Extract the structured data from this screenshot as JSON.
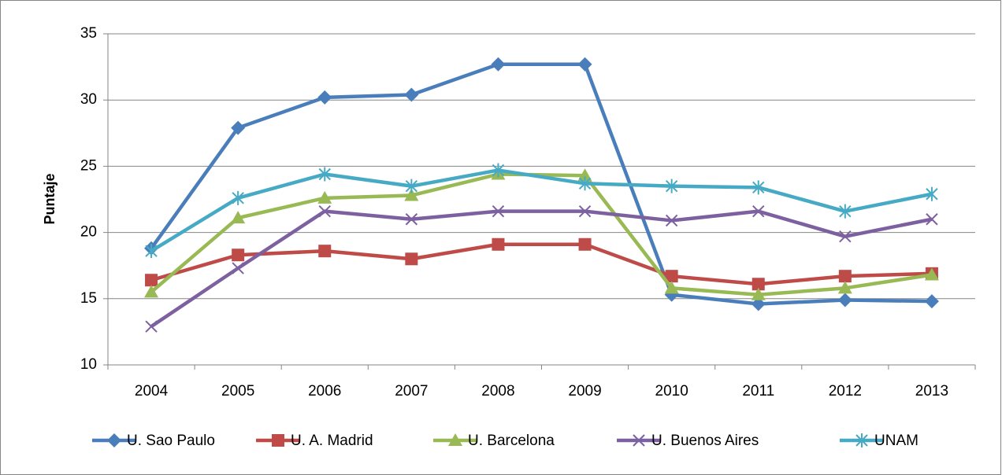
{
  "chart_data": {
    "type": "line",
    "y_label": "Puntaje",
    "categories": [
      "2004",
      "2005",
      "2006",
      "2007",
      "2008",
      "2009",
      "2010",
      "2011",
      "2012",
      "2013"
    ],
    "series": [
      {
        "name": "U. Sao Paulo",
        "color": "#4a7ebb",
        "marker": "diamond",
        "values": [
          18.8,
          27.9,
          30.2,
          30.4,
          32.7,
          32.7,
          15.3,
          14.6,
          14.9,
          14.8
        ]
      },
      {
        "name": "U. A. Madrid",
        "color": "#be4b48",
        "marker": "square",
        "values": [
          16.4,
          18.3,
          18.6,
          18.0,
          19.1,
          19.1,
          16.7,
          16.1,
          16.7,
          16.9
        ]
      },
      {
        "name": "U. Barcelona",
        "color": "#98b954",
        "marker": "triangle",
        "values": [
          15.5,
          21.1,
          22.6,
          22.8,
          24.4,
          24.3,
          15.8,
          15.3,
          15.8,
          16.8
        ]
      },
      {
        "name": "U. Buenos Aires",
        "color": "#7d60a0",
        "marker": "x",
        "values": [
          12.9,
          17.3,
          21.6,
          21.0,
          21.6,
          21.6,
          20.9,
          21.6,
          19.7,
          21.0
        ]
      },
      {
        "name": "UNAM",
        "color": "#46aac5",
        "marker": "star",
        "values": [
          18.6,
          22.6,
          24.4,
          23.5,
          24.7,
          23.7,
          23.5,
          23.4,
          21.6,
          22.9
        ]
      }
    ],
    "ylim": [
      10,
      35
    ],
    "yticks": [
      10,
      15,
      20,
      25,
      30,
      35
    ],
    "grid": true,
    "legend": "bottom"
  }
}
